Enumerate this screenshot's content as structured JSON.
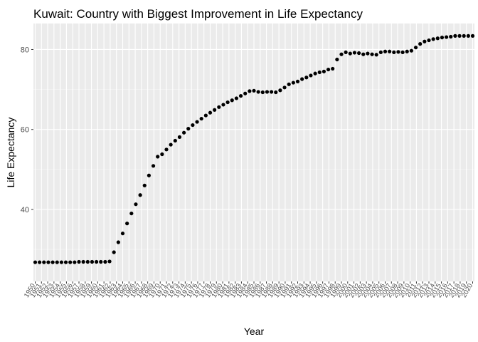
{
  "chart_data": {
    "type": "scatter",
    "title": "Kuwait: Country with Biggest Improvement in Life Expectancy",
    "xlabel": "Year",
    "ylabel": "Life Expectancy",
    "x_start": 1950,
    "x_end": 2020,
    "xlim": [
      1950,
      2020
    ],
    "ylim": [
      22,
      86.5
    ],
    "yticks": [
      40,
      60,
      80
    ],
    "x_tick_labels": [
      "1950",
      "1951",
      "1952",
      "1953",
      "1954",
      "1955",
      "1956",
      "1957",
      "1958",
      "1959",
      "1960",
      "1961",
      "1962",
      "1963",
      "1964",
      "1965",
      "1966",
      "1967",
      "1968",
      "1969",
      "1970",
      "1971",
      "1972",
      "1973",
      "1974",
      "1975",
      "1976",
      "1977",
      "1978",
      "1979",
      "1980",
      "1981",
      "1982",
      "1983",
      "1984",
      "1985",
      "1986",
      "1987",
      "1988",
      "1989",
      "1990",
      "1991",
      "1992",
      "1993",
      "1994",
      "1995",
      "1996",
      "1997",
      "1998",
      "1999",
      "2000",
      "2001",
      "2002",
      "2003",
      "2004",
      "2005",
      "2006",
      "2007",
      "2008",
      "2009",
      "2010",
      "2011",
      "2012",
      "2013",
      "2014",
      "2015",
      "2016",
      "2017",
      "2018",
      "2019",
      "2020"
    ],
    "grid": true,
    "values": [
      26.8,
      26.8,
      26.8,
      26.8,
      26.8,
      26.8,
      26.8,
      26.8,
      26.8,
      26.8,
      26.9,
      26.9,
      26.9,
      26.9,
      26.9,
      26.9,
      26.9,
      27.0,
      29.3,
      31.8,
      34.0,
      36.5,
      39.0,
      41.3,
      43.6,
      46.0,
      48.5,
      50.9,
      53.2,
      53.8,
      55.0,
      56.2,
      57.2,
      58.1,
      59.2,
      60.2,
      61.1,
      61.9,
      62.7,
      63.5,
      64.2,
      64.9,
      65.6,
      66.2,
      66.8,
      67.3,
      67.8,
      68.4,
      69.0,
      69.6,
      69.7,
      69.4,
      69.3,
      69.4,
      69.4,
      69.3,
      69.8,
      70.5,
      71.3,
      71.7,
      72.0,
      72.6,
      73.0,
      73.5,
      74.0,
      74.3,
      74.5,
      75.0,
      75.2,
      77.5,
      78.8,
      79.3,
      79.0,
      79.2,
      79.1,
      78.8,
      79.0,
      78.8,
      78.7,
      79.3,
      79.5,
      79.5,
      79.3,
      79.4,
      79.3,
      79.5,
      79.7,
      80.5,
      81.4,
      82.0,
      82.3,
      82.6,
      82.8,
      83.0,
      83.1,
      83.2,
      83.4,
      83.4,
      83.4,
      83.4,
      83.4
    ]
  }
}
